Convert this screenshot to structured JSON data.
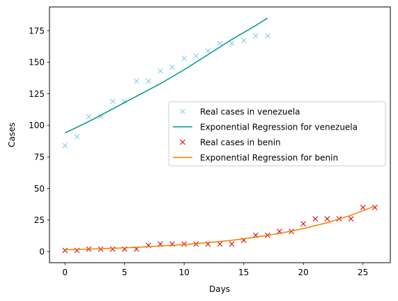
{
  "chart_data": {
    "type": "line",
    "title": "",
    "xlabel": "Days",
    "ylabel": "Cases",
    "xlim": [
      -1.3,
      27.3
    ],
    "ylim": [
      -8.75,
      193.75
    ],
    "xticks": [
      0,
      5,
      10,
      15,
      20,
      25
    ],
    "yticks": [
      0,
      25,
      50,
      75,
      100,
      125,
      150,
      175
    ],
    "grid": false,
    "legend_position": "center-right",
    "series": [
      {
        "name": "Real cases in venezuela",
        "kind": "scatter",
        "marker": "x",
        "color": "#87ceeb",
        "x": [
          0,
          1,
          2,
          3,
          4,
          5,
          6,
          7,
          8,
          9,
          10,
          11,
          12,
          13,
          14,
          15,
          16,
          17
        ],
        "y": [
          84,
          91,
          107,
          107,
          119,
          119,
          135,
          135,
          143,
          146,
          153,
          155,
          159,
          165,
          165,
          167,
          171,
          171
        ]
      },
      {
        "name": "Exponential Regression for venezuela",
        "kind": "line",
        "color": "#009688",
        "x": [
          0,
          2,
          4,
          6,
          8,
          10,
          12,
          14,
          16,
          17
        ],
        "y": [
          94,
          103,
          113,
          123,
          133,
          144,
          156,
          168,
          179,
          185
        ]
      },
      {
        "name": "Real cases in benin",
        "kind": "scatter",
        "marker": "x",
        "color": "#e00000",
        "x": [
          0,
          1,
          2,
          3,
          4,
          5,
          6,
          7,
          8,
          9,
          10,
          11,
          12,
          13,
          14,
          15,
          16,
          17,
          18,
          19,
          20,
          21,
          22,
          23,
          24,
          25,
          26
        ],
        "y": [
          1,
          1,
          2,
          2,
          2,
          2,
          2,
          5,
          6,
          6,
          6,
          6,
          6,
          6,
          6,
          9,
          13,
          13,
          16,
          16,
          22,
          26,
          26,
          26,
          26,
          35,
          35
        ]
      },
      {
        "name": "Exponential Regression for benin",
        "kind": "line",
        "color": "#f57c00",
        "x": [
          0,
          2,
          4,
          6,
          8,
          10,
          12,
          14,
          16,
          18,
          20,
          22,
          24,
          26
        ],
        "y": [
          1.5,
          2.0,
          2.6,
          3.4,
          4.4,
          5.6,
          7.1,
          9.0,
          11.4,
          14.4,
          18.2,
          22.9,
          28.8,
          36.0
        ]
      }
    ]
  }
}
